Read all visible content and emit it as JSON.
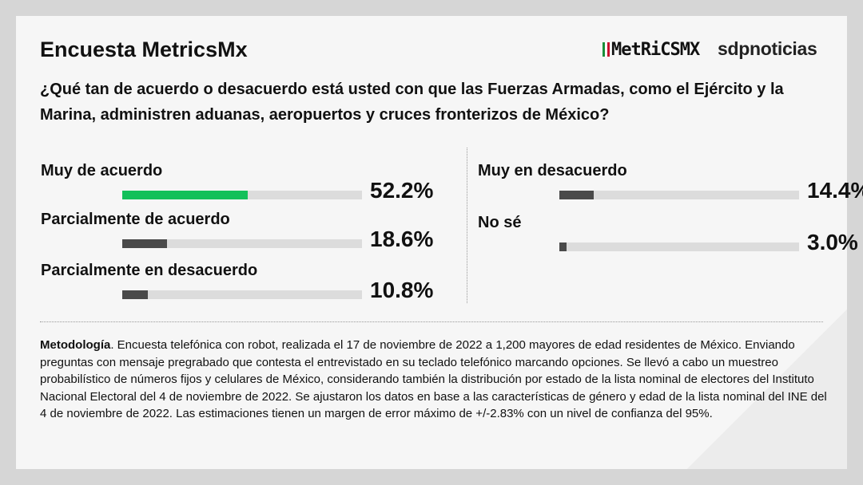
{
  "header": {
    "title": "Encuesta MetricsMx",
    "logo_metrics": "MetRiCSMX",
    "logo_sdp": "sdpnoticias"
  },
  "question": "¿Qué tan de acuerdo o desacuerdo está usted con que las Fuerzas Armadas, como el Ejército y la Marina, administren aduanas, aeropuertos y cruces fronterizos de México?",
  "colors": {
    "highlight": "#12c05a",
    "bar": "#4a4a4a",
    "track": "#dcdcdc"
  },
  "chart_data": {
    "type": "bar",
    "title": "¿Qué tan de acuerdo o desacuerdo está usted con que las Fuerzas Armadas administren aduanas, aeropuertos y cruces fronterizos de México?",
    "categories": [
      "Muy de acuerdo",
      "Parcialmente de acuerdo",
      "Parcialmente en desacuerdo",
      "Muy en desacuerdo",
      "No sé"
    ],
    "values": [
      52.2,
      18.6,
      10.8,
      14.4,
      3.0
    ],
    "labels": [
      "52.2%",
      "18.6%",
      "10.8%",
      "14.4%",
      "3.0%"
    ],
    "ylim": [
      0,
      100
    ]
  },
  "methodology": {
    "heading": "Metodología",
    "text": ". Encuesta telefónica con robot, realizada el 17 de noviembre de 2022 a 1,200 mayores de edad residentes de México. Enviando preguntas con mensaje pregrabado que contesta el entrevistado en su teclado telefónico marcando opciones. Se llevó a cabo un muestreo probabilístico de números fijos y celulares de México, considerando también la distribución por estado de la lista nominal de electores del Instituto Nacional Electoral del 4 de noviembre de 2022. Se ajustaron los datos en base a las características de género y edad de la lista nominal del INE del 4 de noviembre de 2022. Las estimaciones tienen un margen de error máximo de +/-2.83% con un nivel de confianza del 95%."
  }
}
